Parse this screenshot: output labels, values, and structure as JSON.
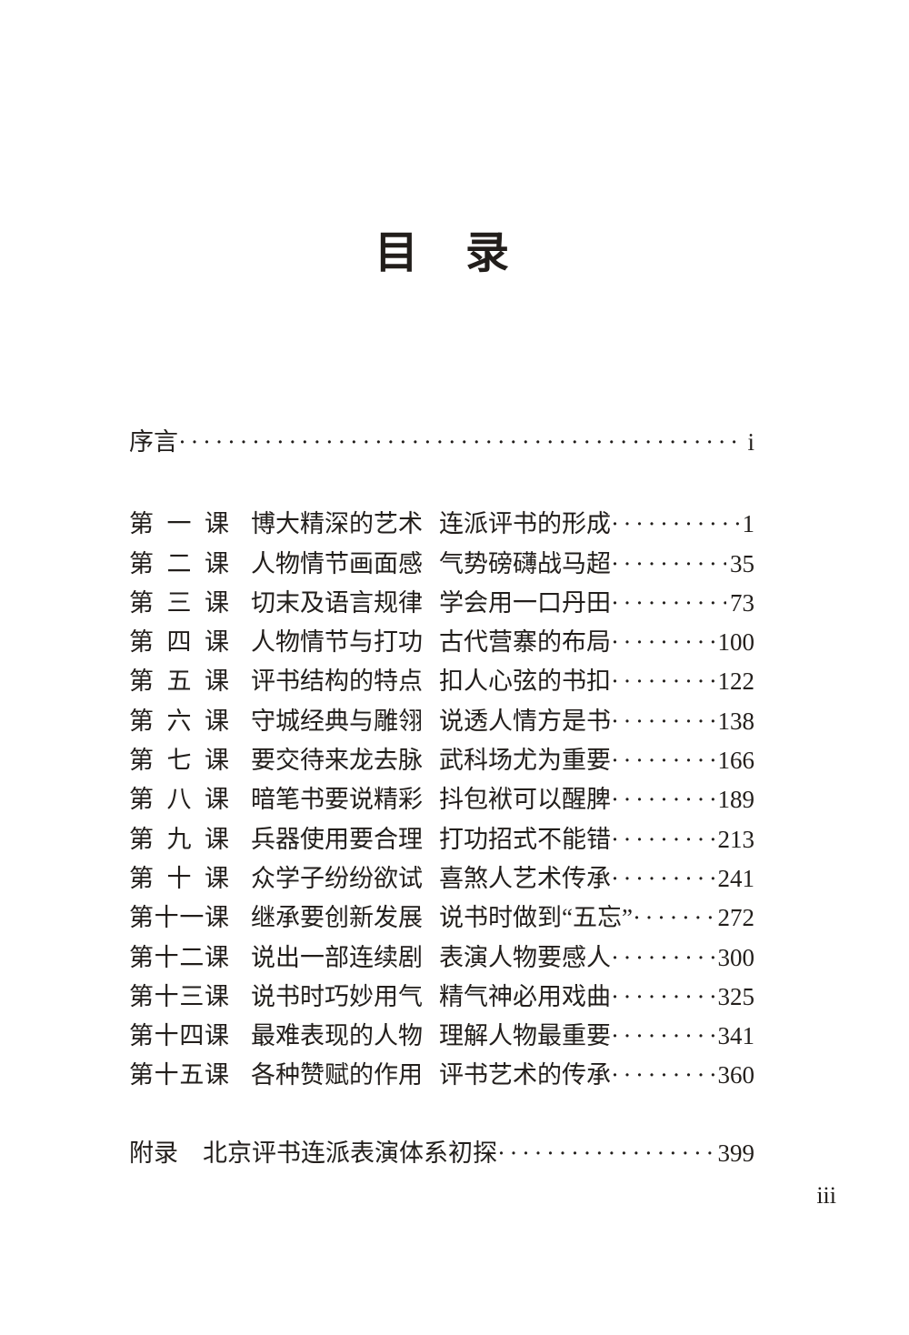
{
  "page": {
    "title": "目 录",
    "folio": "iii"
  },
  "preface": {
    "label": "序言",
    "page": "i"
  },
  "lessons": [
    {
      "no": "第 一 课",
      "part1": "博大精深的艺术",
      "part2": "连派评书的形成",
      "page": "1"
    },
    {
      "no": "第 二 课",
      "part1": "人物情节画面感",
      "part2": "气势磅礴战马超",
      "page": "35"
    },
    {
      "no": "第 三 课",
      "part1": "切末及语言规律",
      "part2": "学会用一口丹田",
      "page": "73"
    },
    {
      "no": "第 四 课",
      "part1": "人物情节与打功",
      "part2": "古代营寨的布局",
      "page": "100"
    },
    {
      "no": "第 五 课",
      "part1": "评书结构的特点",
      "part2": "扣人心弦的书扣",
      "page": "122"
    },
    {
      "no": "第 六 课",
      "part1": "守城经典与雕翎",
      "part2": "说透人情方是书",
      "page": "138"
    },
    {
      "no": "第 七 课",
      "part1": "要交待来龙去脉",
      "part2": "武科场尤为重要",
      "page": "166"
    },
    {
      "no": "第 八 课",
      "part1": "暗笔书要说精彩",
      "part2": "抖包袱可以醒脾",
      "page": "189"
    },
    {
      "no": "第 九 课",
      "part1": "兵器使用要合理",
      "part2": "打功招式不能错",
      "page": "213"
    },
    {
      "no": "第 十 课",
      "part1": "众学子纷纷欲试",
      "part2": "喜煞人艺术传承",
      "page": "241"
    },
    {
      "no": "第十一课",
      "part1": "继承要创新发展",
      "part2": "说书时做到“五忘”",
      "page": "272"
    },
    {
      "no": "第十二课",
      "part1": "说出一部连续剧",
      "part2": "表演人物要感人",
      "page": "300"
    },
    {
      "no": "第十三课",
      "part1": "说书时巧妙用气",
      "part2": "精气神必用戏曲",
      "page": "325"
    },
    {
      "no": "第十四课",
      "part1": "最难表现的人物",
      "part2": "理解人物最重要",
      "page": "341"
    },
    {
      "no": "第十五课",
      "part1": "各种赞赋的作用",
      "part2": "评书艺术的传承",
      "page": "360"
    }
  ],
  "appendix": {
    "label": "附录",
    "title": "北京评书连派表演体系初探",
    "page": "399"
  }
}
